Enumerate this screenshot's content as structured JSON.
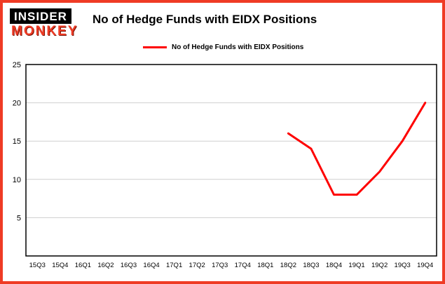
{
  "page": {
    "border_color": "#ef3b25",
    "background": "#ffffff"
  },
  "logo": {
    "line1": "INSIDER",
    "line2": "MONKEY",
    "box_color": "#000000",
    "line1_color": "#ffffff",
    "line2_color": "#ef3b25"
  },
  "header": {
    "title": "No of Hedge Funds with EIDX Positions"
  },
  "legend": {
    "label": "No of Hedge Funds with EIDX Positions",
    "line_color": "#fe0000"
  },
  "chart_data": {
    "type": "line",
    "title": "No of Hedge Funds with EIDX Positions",
    "categories": [
      "15Q3",
      "15Q4",
      "16Q1",
      "16Q2",
      "16Q3",
      "16Q4",
      "17Q1",
      "17Q2",
      "17Q3",
      "17Q4",
      "18Q1",
      "18Q2",
      "18Q3",
      "18Q4",
      "19Q1",
      "19Q2",
      "19Q3",
      "19Q4"
    ],
    "values": [
      null,
      null,
      null,
      null,
      null,
      null,
      null,
      null,
      null,
      null,
      null,
      16,
      14,
      8,
      8,
      11,
      15,
      20
    ],
    "xlabel": "",
    "ylabel": "",
    "ylim": [
      0,
      25
    ],
    "yticks": [
      5,
      10,
      15,
      20,
      25
    ],
    "line_color": "#fe0000",
    "grid": true,
    "gridline_color": "#cfcfcf",
    "plot_border_color": "#000000",
    "legend_position": "top-left"
  }
}
